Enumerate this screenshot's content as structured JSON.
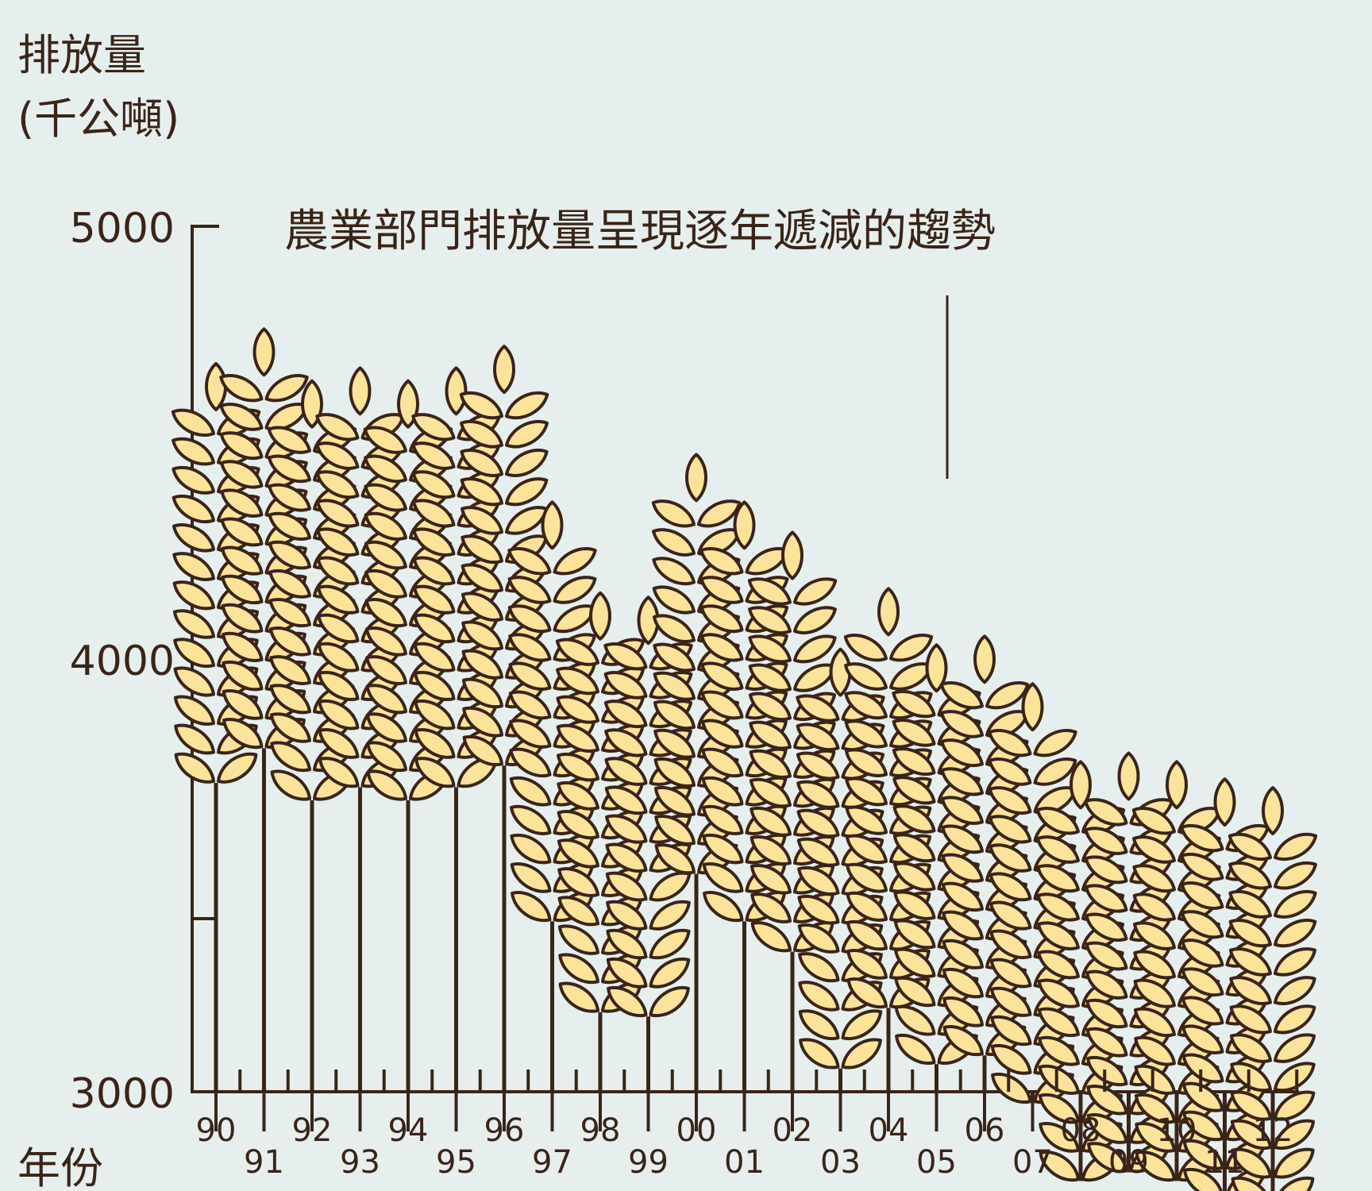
{
  "colors": {
    "background": "#e7efee",
    "grain_fill": "#fbe39a",
    "ink": "#3a2418"
  },
  "icon": "wheat-ear-icon",
  "chart_data": {
    "type": "bar",
    "title": "農業部門排放量呈現逐年遞減的趨勢",
    "ylabel_line1": "排放量",
    "ylabel_line2": "(千公噸)",
    "xlabel": "年份",
    "ylim": [
      3000,
      5000
    ],
    "yticks": [
      "3000",
      "4000",
      "5000"
    ],
    "categories": [
      "90",
      "91",
      "92",
      "93",
      "94",
      "95",
      "96",
      "97",
      "98",
      "99",
      "00",
      "01",
      "02",
      "03",
      "04",
      "05",
      "06",
      "07",
      "08",
      "09",
      "10",
      "11",
      "12"
    ],
    "values": [
      4690,
      4770,
      4650,
      4680,
      4650,
      4680,
      4730,
      4370,
      4160,
      4150,
      4480,
      4370,
      4300,
      4030,
      4170,
      4040,
      4060,
      3950,
      3770,
      3790,
      3770,
      3730,
      3710
    ]
  }
}
